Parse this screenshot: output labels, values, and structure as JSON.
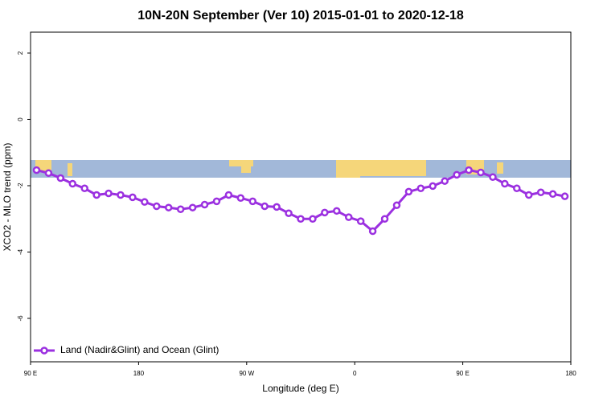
{
  "chart_data": {
    "type": "line",
    "title": "10N-20N September (Ver 10)   2015-01-01 to 2020-12-18",
    "xlabel": "Longitude (deg E)",
    "ylabel": "XCO2 - MLO trend (ppm)",
    "x": [
      95,
      105,
      115,
      125,
      135,
      145,
      155,
      165,
      175,
      185,
      195,
      205,
      215,
      225,
      235,
      245,
      255,
      265,
      275,
      285,
      295,
      305,
      315,
      325,
      335,
      345,
      355,
      365,
      375,
      385,
      395,
      405,
      415,
      425,
      435,
      445,
      455,
      465,
      475,
      485,
      495,
      505,
      515,
      525,
      535
    ],
    "series": [
      {
        "name": "Land (Nadir&Glint) and Ocean (Glint)",
        "color": "#9b30e0",
        "values": [
          -1.53,
          -1.62,
          -1.77,
          -1.94,
          -2.08,
          -2.28,
          -2.23,
          -2.28,
          -2.35,
          -2.49,
          -2.62,
          -2.66,
          -2.71,
          -2.66,
          -2.57,
          -2.47,
          -2.28,
          -2.37,
          -2.47,
          -2.62,
          -2.64,
          -2.83,
          -3.0,
          -3.0,
          -2.81,
          -2.76,
          -2.95,
          -3.07,
          -3.37,
          -3.0,
          -2.59,
          -2.18,
          -2.08,
          -2.01,
          -1.86,
          -1.67,
          -1.53,
          -1.6,
          -1.74,
          -1.94,
          -2.08,
          -2.28,
          -2.2,
          -2.25,
          -2.32
        ]
      }
    ],
    "xlim": [
      90,
      540
    ],
    "xticks": [
      {
        "value": 90,
        "label": "90 E"
      },
      180,
      {
        "value": 270,
        "label": "90 W"
      },
      {
        "value": 360,
        "label": "0"
      },
      {
        "value": 450,
        "label": "90 E"
      },
      {
        "value": 540,
        "label": "180"
      }
    ],
    "ylim": [
      -7.31,
      2.63
    ],
    "yticks": [
      -6,
      -4,
      -2,
      0,
      2
    ],
    "legend": "bottom-left"
  }
}
